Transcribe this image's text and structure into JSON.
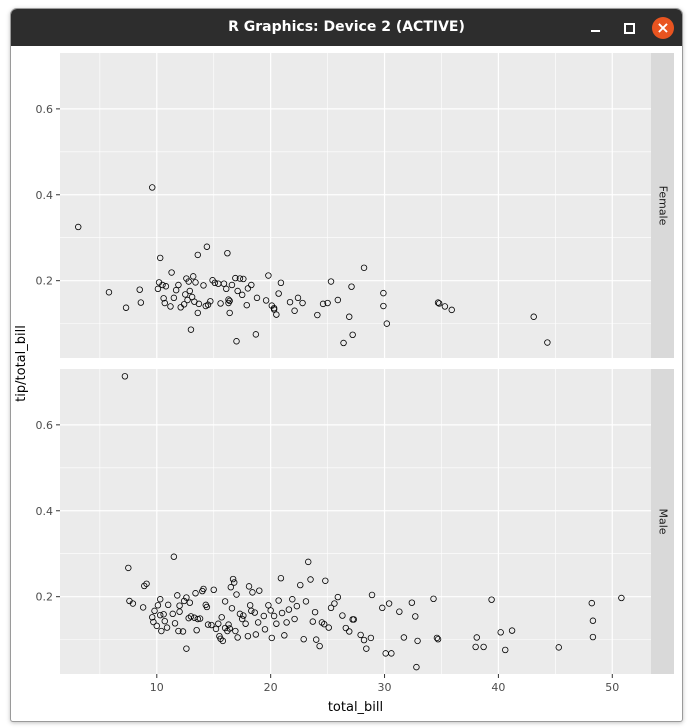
{
  "window": {
    "title": "R Graphics: Device 2 (ACTIVE)",
    "controls": {
      "minimize": "minimize",
      "maximize": "maximize",
      "close": "close"
    }
  },
  "colors": {
    "panel_background": "#ebebeb",
    "grid_major": "#ffffff",
    "strip_background": "#d9d9d9",
    "point_stroke": "#000000",
    "titlebar": "#2d2d2d",
    "close_button": "#e95420"
  },
  "chart_data": {
    "type": "scatter",
    "xlabel": "total_bill",
    "ylabel": "tip/total_bill",
    "xlim": [
      1.5,
      53.4
    ],
    "ylim": [
      0.02,
      0.73
    ],
    "x_ticks": [
      10,
      20,
      30,
      40,
      50
    ],
    "x_tick_labels": [
      "10",
      "20",
      "30",
      "40",
      "50"
    ],
    "y_ticks": [
      0.2,
      0.4,
      0.6
    ],
    "y_tick_labels": [
      "0.2",
      "0.4",
      "0.6"
    ],
    "grid": true,
    "point_shape": "open-circle",
    "facets": [
      {
        "label": "Female",
        "points": [
          [
            3.1,
            0.325
          ],
          [
            5.8,
            0.173
          ],
          [
            7.3,
            0.137
          ],
          [
            8.5,
            0.179
          ],
          [
            8.6,
            0.149
          ],
          [
            9.6,
            0.417
          ],
          [
            10.1,
            0.181
          ],
          [
            10.2,
            0.196
          ],
          [
            10.3,
            0.253
          ],
          [
            10.5,
            0.19
          ],
          [
            10.6,
            0.159
          ],
          [
            10.7,
            0.148
          ],
          [
            10.8,
            0.187
          ],
          [
            11.2,
            0.14
          ],
          [
            11.3,
            0.219
          ],
          [
            11.5,
            0.16
          ],
          [
            11.7,
            0.178
          ],
          [
            11.9,
            0.19
          ],
          [
            12.1,
            0.138
          ],
          [
            12.4,
            0.145
          ],
          [
            12.5,
            0.168
          ],
          [
            12.6,
            0.205
          ],
          [
            12.7,
            0.155
          ],
          [
            12.8,
            0.198
          ],
          [
            12.9,
            0.176
          ],
          [
            13.0,
            0.086
          ],
          [
            13.1,
            0.162
          ],
          [
            13.2,
            0.21
          ],
          [
            13.3,
            0.151
          ],
          [
            13.4,
            0.196
          ],
          [
            13.6,
            0.26
          ],
          [
            13.6,
            0.125
          ],
          [
            13.7,
            0.146
          ],
          [
            14.1,
            0.189
          ],
          [
            14.3,
            0.141
          ],
          [
            14.4,
            0.279
          ],
          [
            14.5,
            0.144
          ],
          [
            14.7,
            0.152
          ],
          [
            14.9,
            0.201
          ],
          [
            15.1,
            0.195
          ],
          [
            15.4,
            0.193
          ],
          [
            15.6,
            0.147
          ],
          [
            15.9,
            0.193
          ],
          [
            16.1,
            0.181
          ],
          [
            16.2,
            0.264
          ],
          [
            16.3,
            0.148
          ],
          [
            16.3,
            0.156
          ],
          [
            16.4,
            0.125
          ],
          [
            16.4,
            0.153
          ],
          [
            16.6,
            0.19
          ],
          [
            16.9,
            0.206
          ],
          [
            17.0,
            0.059
          ],
          [
            17.1,
            0.176
          ],
          [
            17.3,
            0.205
          ],
          [
            17.5,
            0.167
          ],
          [
            17.6,
            0.204
          ],
          [
            17.9,
            0.143
          ],
          [
            18.0,
            0.182
          ],
          [
            18.3,
            0.19
          ],
          [
            18.7,
            0.075
          ],
          [
            18.8,
            0.16
          ],
          [
            19.6,
            0.154
          ],
          [
            19.8,
            0.212
          ],
          [
            20.1,
            0.142
          ],
          [
            20.3,
            0.136
          ],
          [
            20.3,
            0.133
          ],
          [
            20.5,
            0.121
          ],
          [
            20.7,
            0.17
          ],
          [
            20.9,
            0.195
          ],
          [
            21.7,
            0.15
          ],
          [
            22.1,
            0.13
          ],
          [
            22.4,
            0.16
          ],
          [
            22.8,
            0.148
          ],
          [
            24.1,
            0.12
          ],
          [
            24.6,
            0.146
          ],
          [
            25.0,
            0.148
          ],
          [
            25.3,
            0.198
          ],
          [
            25.9,
            0.155
          ],
          [
            26.4,
            0.055
          ],
          [
            26.9,
            0.116
          ],
          [
            27.1,
            0.186
          ],
          [
            27.2,
            0.074
          ],
          [
            28.2,
            0.23
          ],
          [
            29.9,
            0.171
          ],
          [
            29.9,
            0.141
          ],
          [
            30.2,
            0.1
          ],
          [
            34.7,
            0.149
          ],
          [
            34.8,
            0.147
          ],
          [
            35.3,
            0.14
          ],
          [
            35.9,
            0.132
          ],
          [
            43.1,
            0.116
          ],
          [
            44.3,
            0.056
          ]
        ]
      },
      {
        "label": "Male",
        "points": [
          [
            7.2,
            0.713
          ],
          [
            7.5,
            0.267
          ],
          [
            7.6,
            0.19
          ],
          [
            7.9,
            0.184
          ],
          [
            8.8,
            0.175
          ],
          [
            8.9,
            0.225
          ],
          [
            9.1,
            0.23
          ],
          [
            9.6,
            0.152
          ],
          [
            9.7,
            0.141
          ],
          [
            9.8,
            0.167
          ],
          [
            10.0,
            0.132
          ],
          [
            10.1,
            0.18
          ],
          [
            10.3,
            0.157
          ],
          [
            10.3,
            0.194
          ],
          [
            10.4,
            0.12
          ],
          [
            10.6,
            0.159
          ],
          [
            10.7,
            0.143
          ],
          [
            10.9,
            0.128
          ],
          [
            11.0,
            0.181
          ],
          [
            11.4,
            0.16
          ],
          [
            11.5,
            0.293
          ],
          [
            11.6,
            0.138
          ],
          [
            11.8,
            0.203
          ],
          [
            11.9,
            0.12
          ],
          [
            12.0,
            0.179
          ],
          [
            12.0,
            0.165
          ],
          [
            12.3,
            0.119
          ],
          [
            12.4,
            0.19
          ],
          [
            12.6,
            0.079
          ],
          [
            12.6,
            0.198
          ],
          [
            12.8,
            0.15
          ],
          [
            12.9,
            0.186
          ],
          [
            13.0,
            0.154
          ],
          [
            13.3,
            0.151
          ],
          [
            13.4,
            0.208
          ],
          [
            13.5,
            0.122
          ],
          [
            13.6,
            0.148
          ],
          [
            13.8,
            0.149
          ],
          [
            14.0,
            0.213
          ],
          [
            14.1,
            0.218
          ],
          [
            14.3,
            0.181
          ],
          [
            14.4,
            0.176
          ],
          [
            14.5,
            0.135
          ],
          [
            14.8,
            0.134
          ],
          [
            15.0,
            0.216
          ],
          [
            15.2,
            0.125
          ],
          [
            15.4,
            0.137
          ],
          [
            15.5,
            0.108
          ],
          [
            15.6,
            0.102
          ],
          [
            15.7,
            0.152
          ],
          [
            15.8,
            0.097
          ],
          [
            16.0,
            0.189
          ],
          [
            16.0,
            0.127
          ],
          [
            16.2,
            0.12
          ],
          [
            16.3,
            0.135
          ],
          [
            16.4,
            0.126
          ],
          [
            16.5,
            0.222
          ],
          [
            16.6,
            0.173
          ],
          [
            16.7,
            0.241
          ],
          [
            16.8,
            0.233
          ],
          [
            16.9,
            0.12
          ],
          [
            17.0,
            0.205
          ],
          [
            17.1,
            0.105
          ],
          [
            17.3,
            0.16
          ],
          [
            17.5,
            0.148
          ],
          [
            17.6,
            0.156
          ],
          [
            17.8,
            0.137
          ],
          [
            18.0,
            0.108
          ],
          [
            18.1,
            0.224
          ],
          [
            18.2,
            0.18
          ],
          [
            18.3,
            0.167
          ],
          [
            18.4,
            0.21
          ],
          [
            18.6,
            0.163
          ],
          [
            18.7,
            0.112
          ],
          [
            18.9,
            0.14
          ],
          [
            19.0,
            0.214
          ],
          [
            19.4,
            0.155
          ],
          [
            19.5,
            0.124
          ],
          [
            19.8,
            0.18
          ],
          [
            20.0,
            0.168
          ],
          [
            20.1,
            0.104
          ],
          [
            20.3,
            0.155
          ],
          [
            20.5,
            0.137
          ],
          [
            20.7,
            0.191
          ],
          [
            20.9,
            0.243
          ],
          [
            21.0,
            0.162
          ],
          [
            21.2,
            0.11
          ],
          [
            21.4,
            0.14
          ],
          [
            21.6,
            0.17
          ],
          [
            21.9,
            0.194
          ],
          [
            22.1,
            0.148
          ],
          [
            22.3,
            0.178
          ],
          [
            22.6,
            0.227
          ],
          [
            22.9,
            0.101
          ],
          [
            23.1,
            0.189
          ],
          [
            23.3,
            0.281
          ],
          [
            23.5,
            0.24
          ],
          [
            23.7,
            0.142
          ],
          [
            23.9,
            0.164
          ],
          [
            24.0,
            0.1
          ],
          [
            24.3,
            0.085
          ],
          [
            24.5,
            0.14
          ],
          [
            24.7,
            0.136
          ],
          [
            24.8,
            0.237
          ],
          [
            25.1,
            0.128
          ],
          [
            25.3,
            0.174
          ],
          [
            25.6,
            0.184
          ],
          [
            25.9,
            0.199
          ],
          [
            26.3,
            0.156
          ],
          [
            26.6,
            0.127
          ],
          [
            26.9,
            0.119
          ],
          [
            27.2,
            0.147
          ],
          [
            27.3,
            0.147
          ],
          [
            27.9,
            0.111
          ],
          [
            28.2,
            0.099
          ],
          [
            28.4,
            0.079
          ],
          [
            28.8,
            0.104
          ],
          [
            28.9,
            0.204
          ],
          [
            29.8,
            0.174
          ],
          [
            30.1,
            0.068
          ],
          [
            30.4,
            0.184
          ],
          [
            30.6,
            0.068
          ],
          [
            31.3,
            0.165
          ],
          [
            31.7,
            0.105
          ],
          [
            32.4,
            0.186
          ],
          [
            32.7,
            0.154
          ],
          [
            32.8,
            0.036
          ],
          [
            32.9,
            0.097
          ],
          [
            34.3,
            0.195
          ],
          [
            34.6,
            0.104
          ],
          [
            34.7,
            0.101
          ],
          [
            38.0,
            0.083
          ],
          [
            38.1,
            0.105
          ],
          [
            38.7,
            0.083
          ],
          [
            39.4,
            0.193
          ],
          [
            40.2,
            0.117
          ],
          [
            40.6,
            0.076
          ],
          [
            41.2,
            0.121
          ],
          [
            45.3,
            0.082
          ],
          [
            48.2,
            0.185
          ],
          [
            48.3,
            0.144
          ],
          [
            48.3,
            0.106
          ],
          [
            50.8,
            0.197
          ]
        ]
      }
    ]
  }
}
